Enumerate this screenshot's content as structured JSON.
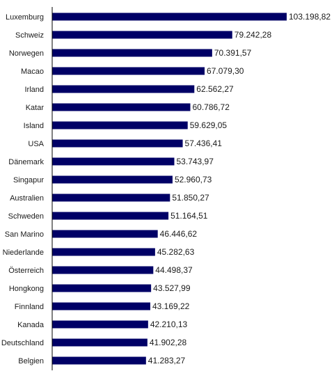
{
  "chart_data": {
    "type": "bar",
    "orientation": "horizontal",
    "categories": [
      "Luxemburg",
      "Schweiz",
      "Norwegen",
      "Macao",
      "Irland",
      "Katar",
      "Island",
      "USA",
      "Dänemark",
      "Singapur",
      "Australien",
      "Schweden",
      "San Marino",
      "Niederlande",
      "Österreich",
      "Hongkong",
      "Finnland",
      "Kanada",
      "Deutschland",
      "Belgien"
    ],
    "values": [
      103198.82,
      79242.28,
      70391.57,
      67079.3,
      62562.27,
      60786.72,
      59629.05,
      57436.41,
      53743.97,
      52960.73,
      51850.27,
      51164.51,
      46446.62,
      45282.63,
      44498.37,
      43527.99,
      43169.22,
      42210.13,
      41902.28,
      41283.27
    ],
    "value_labels": [
      "103.198,82",
      "79.242,28",
      "70.391,57",
      "67.079,30",
      "62.562,27",
      "60.786,72",
      "59.629,05",
      "57.436,41",
      "53.743,97",
      "52.960,73",
      "51.850,27",
      "51.164,51",
      "46.446,62",
      "45.282,63",
      "44.498,37",
      "43.527,99",
      "43.169,22",
      "42.210,13",
      "41.902,28",
      "41.283,27"
    ],
    "xlim": [
      0,
      103198.82
    ],
    "grid": false,
    "legend": "none",
    "bar_color": "#000066"
  }
}
